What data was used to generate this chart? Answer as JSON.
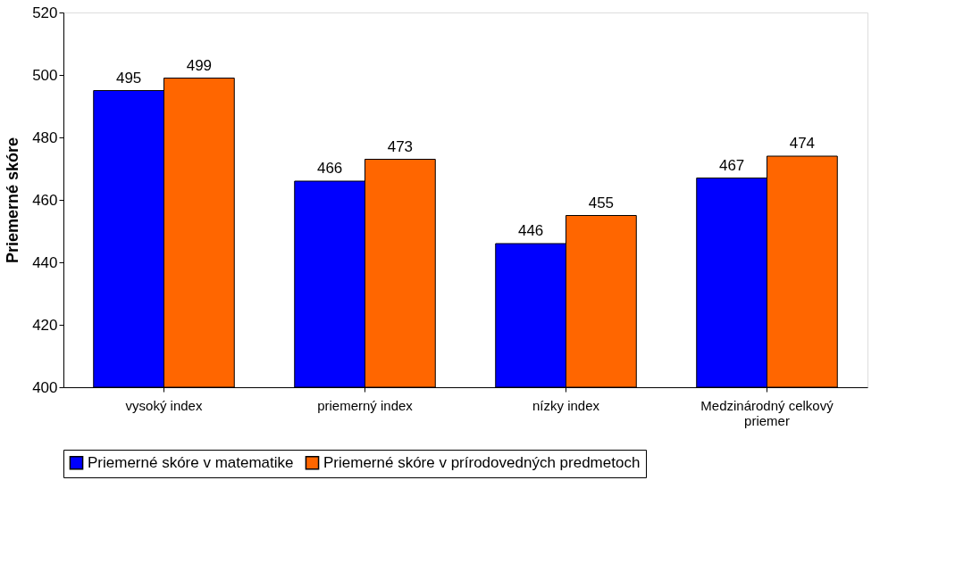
{
  "chart_data": {
    "type": "bar",
    "ylabel": "Priemerné skóre",
    "categories": [
      "vysoký index",
      "priemerný index",
      "nízky index",
      "Medzinárodný celkový priemer"
    ],
    "series": [
      {
        "name": "Priemerné skóre v matematike",
        "color": "#0000ff",
        "values": [
          495,
          466,
          446,
          467
        ]
      },
      {
        "name": "Priemerné skóre v prírodovedných predmetoch",
        "color": "#ff6600",
        "values": [
          499,
          473,
          455,
          474
        ]
      }
    ],
    "ylim": [
      400,
      520
    ],
    "yticks": [
      400,
      420,
      440,
      460,
      480,
      500,
      520
    ],
    "data_labels": true,
    "grid": false,
    "legend": "bottom"
  }
}
